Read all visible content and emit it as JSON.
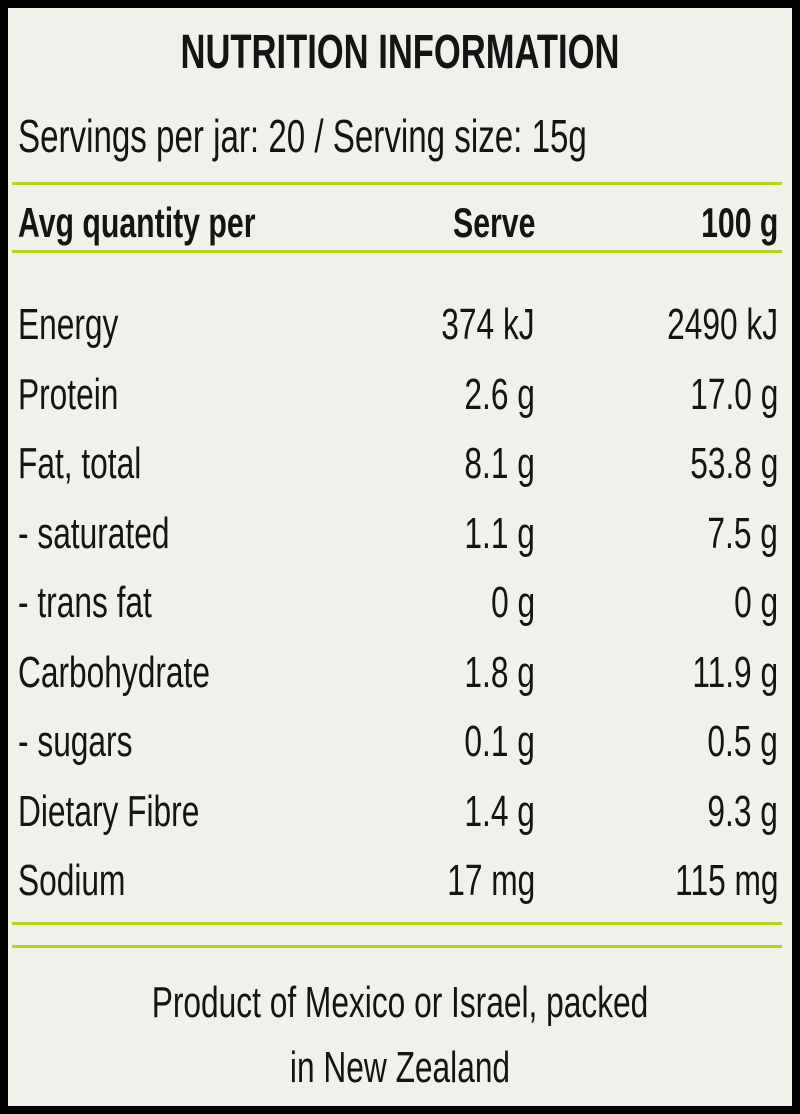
{
  "header": {
    "title": "NUTRITION INFORMATION",
    "servings": "Servings per jar: 20 / Serving size: 15g"
  },
  "table": {
    "columns": [
      "Avg quantity per",
      "Serve",
      "100 g"
    ],
    "rows": [
      [
        "Energy",
        "374 kJ",
        "2490 kJ"
      ],
      [
        "Protein",
        "2.6 g",
        "17.0 g"
      ],
      [
        "Fat, total",
        "8.1 g",
        "53.8 g"
      ],
      [
        "- saturated",
        "1.1 g",
        "7.5 g"
      ],
      [
        "- trans fat",
        "0 g",
        "0 g"
      ],
      [
        "Carbohydrate",
        "1.8 g",
        "11.9 g"
      ],
      [
        "- sugars",
        "0.1 g",
        "0.5 g"
      ],
      [
        "Dietary Fibre",
        "1.4 g",
        "9.3 g"
      ],
      [
        "Sodium",
        "17 mg",
        "115 mg"
      ]
    ]
  },
  "footer": {
    "lines": [
      "Product of Mexico or Israel, packed",
      "in New Zealand"
    ]
  }
}
